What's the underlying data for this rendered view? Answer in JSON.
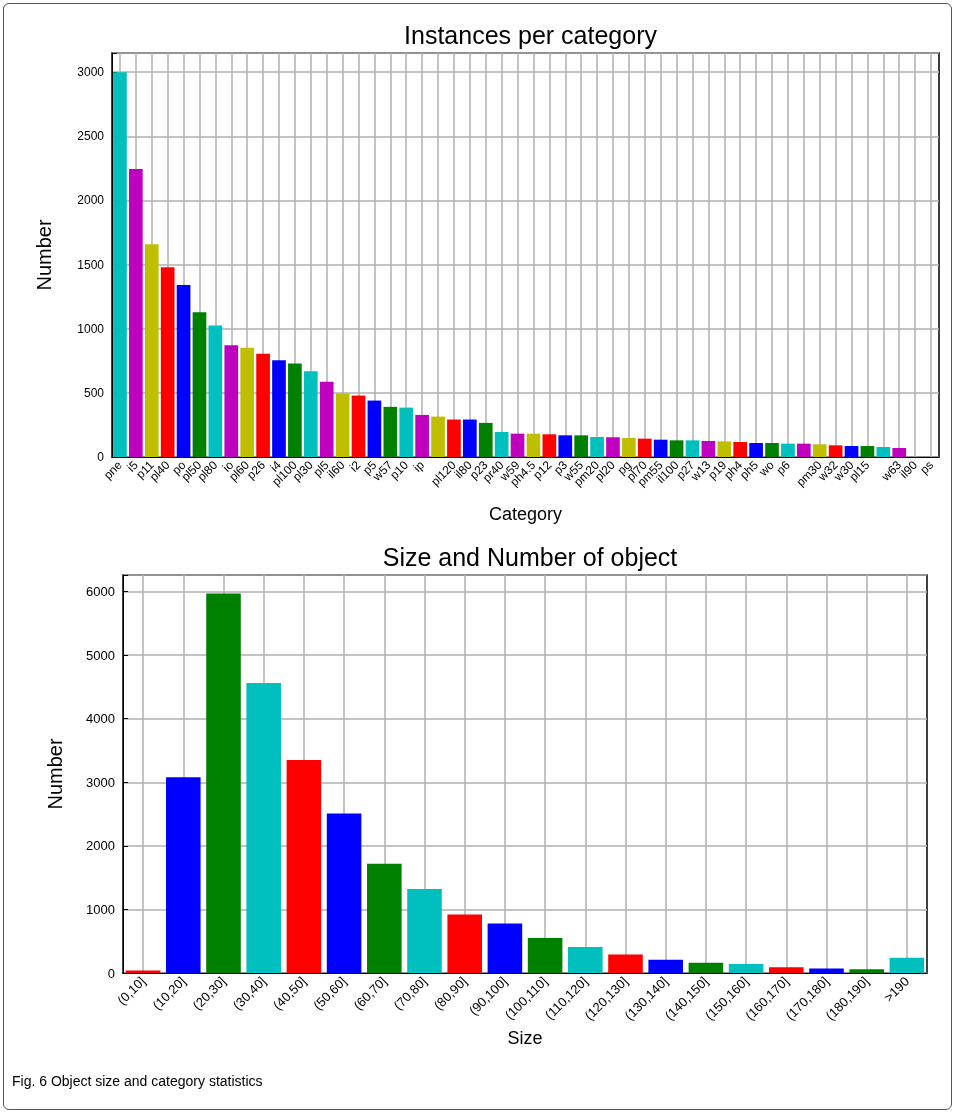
{
  "chart_data": [
    {
      "type": "bar",
      "title": "Instances per category",
      "xlabel": "Category",
      "ylabel": "Number",
      "categories": [
        "pne",
        "i5",
        "p11",
        "pl40",
        "po",
        "pl50",
        "pl80",
        "io",
        "pl60",
        "p26",
        "i4",
        "pl100",
        "pl30",
        "pl5",
        "il60",
        "i2",
        "p5",
        "w57",
        "p10",
        "ip",
        null,
        "pl120",
        "il80",
        "p23",
        "pr40",
        "w59",
        "ph4.5",
        "p12",
        "p3",
        "w55",
        "pm20",
        "pl20",
        "pg",
        "pl70",
        "pm55",
        "il100",
        "p27",
        "w13",
        "p19",
        "ph4",
        "ph5",
        "wo",
        "p6",
        null,
        "pm30",
        "w32",
        "w30",
        "pl15",
        null,
        "w63",
        "il90",
        "ps"
      ],
      "values": [
        3000,
        2245,
        1659,
        1479,
        1341,
        1128,
        1026,
        872,
        852,
        805,
        755,
        729,
        669,
        586,
        495,
        479,
        440,
        391,
        385,
        328,
        315,
        292,
        292,
        266,
        195,
        182,
        182,
        177,
        169,
        169,
        156,
        154,
        148,
        143,
        135,
        130,
        130,
        125,
        122,
        117,
        109,
        109,
        104,
        104,
        99,
        91,
        86,
        86,
        78,
        70,
        0,
        0
      ],
      "colors": [
        "#00bfbf",
        "#bf00bf",
        "#bfbf00",
        "#ff0000",
        "#0000ff",
        "#008000",
        "#00bfbf",
        "#bf00bf",
        "#bfbf00",
        "#ff0000",
        "#0000ff",
        "#008000",
        "#00bfbf",
        "#bf00bf",
        "#bfbf00",
        "#ff0000",
        "#0000ff",
        "#008000",
        "#00bfbf",
        "#bf00bf",
        "#bfbf00",
        "#ff0000",
        "#0000ff",
        "#008000",
        "#00bfbf",
        "#bf00bf",
        "#bfbf00",
        "#ff0000",
        "#0000ff",
        "#008000",
        "#00bfbf",
        "#bf00bf",
        "#bfbf00",
        "#ff0000",
        "#0000ff",
        "#008000",
        "#00bfbf",
        "#bf00bf",
        "#bfbf00",
        "#ff0000",
        "#0000ff",
        "#008000",
        "#00bfbf",
        "#bf00bf",
        "#bfbf00",
        "#ff0000",
        "#0000ff",
        "#008000",
        "#00bfbf",
        "#bf00bf",
        "#bfbf00",
        "#ff0000"
      ],
      "ylim": [
        0,
        3150
      ],
      "yticks": [
        0,
        500,
        1000,
        1500,
        2000,
        2500,
        3000
      ],
      "grid": true
    },
    {
      "type": "bar",
      "title": "Size and Number of object",
      "xlabel": "Size",
      "ylabel": "Number",
      "categories": [
        "(0,10]",
        "(10,20]",
        "(20,30]",
        "(30,40]",
        "(40,50]",
        "(50,60]",
        "(60,70]",
        "(70,80]",
        "(80,90]",
        "(90,100]",
        "(100,110]",
        "(110,120]",
        "(120,130]",
        "(130,140]",
        "(140,150]",
        "(150,160]",
        "(160,170]",
        "(170,180]",
        "(180,190]",
        ">190"
      ],
      "values": [
        40,
        3080,
        5970,
        4560,
        3350,
        2510,
        1720,
        1320,
        920,
        780,
        550,
        410,
        290,
        210,
        160,
        140,
        90,
        70,
        60,
        240
      ],
      "colors": [
        "#ff0000",
        "#0000ff",
        "#008000",
        "#00bfbf",
        "#ff0000",
        "#0000ff",
        "#008000",
        "#00bfbf",
        "#ff0000",
        "#0000ff",
        "#008000",
        "#00bfbf",
        "#ff0000",
        "#0000ff",
        "#008000",
        "#00bfbf",
        "#ff0000",
        "#0000ff",
        "#008000",
        "#00bfbf"
      ],
      "ylim": [
        0,
        6260
      ],
      "yticks": [
        0,
        1000,
        2000,
        3000,
        4000,
        5000,
        6000
      ],
      "grid": true,
      "annotations": [
        "Fig. 6 Object size and category statistics"
      ]
    }
  ]
}
